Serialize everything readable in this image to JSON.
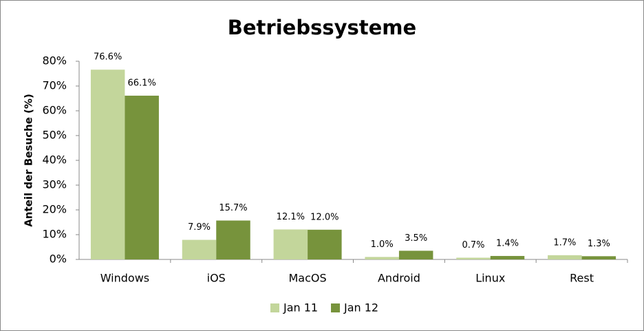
{
  "chart_data": {
    "type": "bar",
    "title": "Betriebssysteme",
    "y_label": "Anteil der Besuche (%)",
    "categories": [
      "Windows",
      "iOS",
      "MacOS",
      "Android",
      "Linux",
      "Rest"
    ],
    "series": [
      {
        "name": "Jan 11",
        "color": "#c3d69b",
        "values": [
          76.6,
          7.9,
          12.1,
          1.0,
          0.7,
          1.7
        ],
        "value_labels": [
          "76.6%",
          "7.9%",
          "12.1%",
          "1.0%",
          "0.7%",
          "1.7%"
        ]
      },
      {
        "name": "Jan 12",
        "color": "#77933c",
        "values": [
          66.1,
          15.7,
          12.0,
          3.5,
          1.4,
          1.3
        ],
        "value_labels": [
          "66.1%",
          "15.7%",
          "12.0%",
          "3.5%",
          "1.4%",
          "1.3%"
        ]
      }
    ],
    "ylim": [
      0,
      80
    ],
    "yticks": [
      {
        "value": 0,
        "label": "0%"
      },
      {
        "value": 10,
        "label": "10%"
      },
      {
        "value": 20,
        "label": "20%"
      },
      {
        "value": 30,
        "label": "30%"
      },
      {
        "value": 40,
        "label": "40%"
      },
      {
        "value": 50,
        "label": "50%"
      },
      {
        "value": 60,
        "label": "60%"
      },
      {
        "value": 70,
        "label": "70%"
      },
      {
        "value": 80,
        "label": "80%"
      }
    ],
    "legend": "bottom"
  }
}
